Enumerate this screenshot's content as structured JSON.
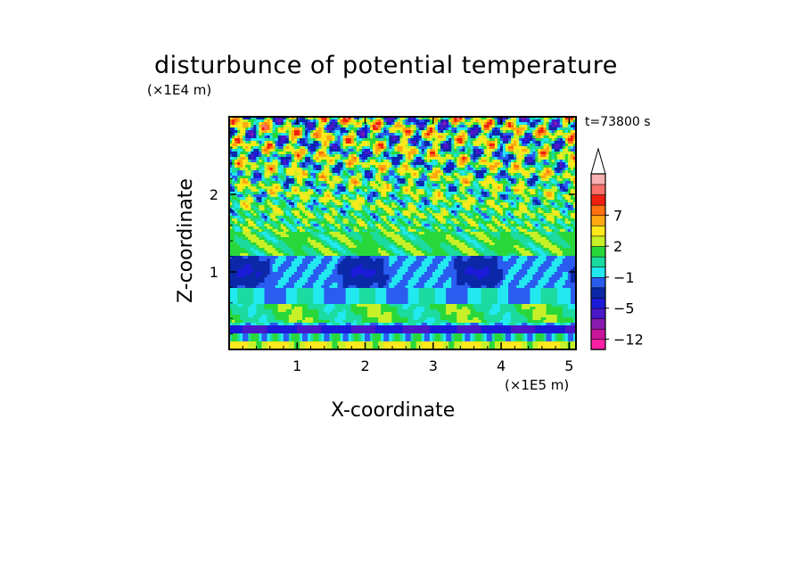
{
  "chart_data": {
    "type": "heatmap",
    "title": "disturbunce of potential temperature",
    "xlabel": "X-coordinate",
    "ylabel": "Z-coordinate",
    "x_unit": "(×1E5 m)",
    "y_unit": "(×1E4 m)",
    "time_label": "t=73800 s",
    "xlim": [
      0,
      5.1
    ],
    "ylim": [
      0,
      3.0
    ],
    "x_ticks": [
      1,
      2,
      3,
      4,
      5
    ],
    "y_ticks": [
      1,
      2
    ],
    "x_tick_labels": [
      "1",
      "2",
      "3",
      "4",
      "5"
    ],
    "y_tick_labels": [
      "1",
      "2"
    ],
    "colorbar": {
      "extend": "max",
      "levels": [
        -12,
        -10,
        -8,
        -5,
        -4,
        -2,
        -1,
        0,
        1,
        2,
        3,
        5,
        7,
        8,
        10
      ],
      "colors": [
        "#ff1fa3",
        "#c8169a",
        "#8a1ab0",
        "#4a18c8",
        "#1a1ad8",
        "#0a28a8",
        "#2a5cf0",
        "#22e8f0",
        "#1cdba0",
        "#28d83a",
        "#c8f028",
        "#ffe81c",
        "#ffa810",
        "#ff7010",
        "#f02010",
        "#f87068",
        "#f8b0b0"
      ],
      "labels": [
        {
          "value": -12,
          "text": "−12"
        },
        {
          "value": -5,
          "text": "−5"
        },
        {
          "value": -1,
          "text": "−1"
        },
        {
          "value": 2,
          "text": "2"
        },
        {
          "value": 7,
          "text": "7"
        }
      ]
    }
  }
}
